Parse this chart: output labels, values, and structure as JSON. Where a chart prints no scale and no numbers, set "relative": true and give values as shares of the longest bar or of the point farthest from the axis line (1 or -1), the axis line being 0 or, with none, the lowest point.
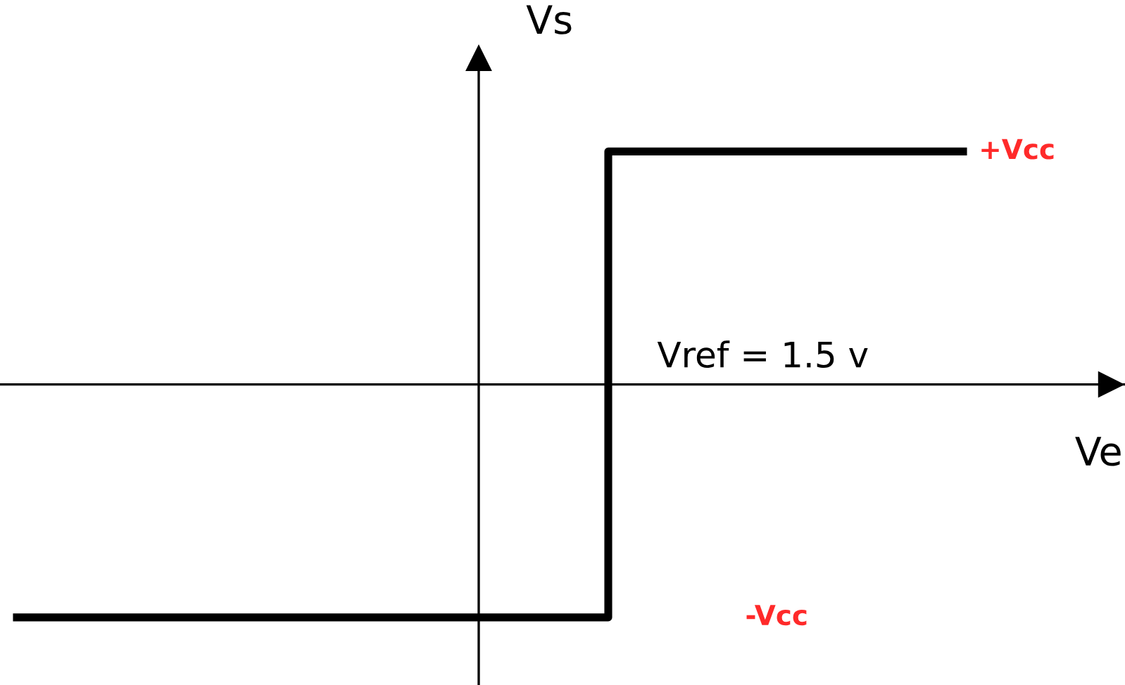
{
  "chart_data": {
    "type": "step",
    "relative": true,
    "xlabel": "Ve",
    "ylabel": "Vs",
    "categories": [
      null,
      null,
      null,
      null,
      null,
      null,
      null,
      null,
      null
    ],
    "values": [
      -1,
      -1,
      -1,
      -1,
      -1,
      1,
      1,
      1,
      1
    ],
    "color": "#000000",
    "annotations": [
      "+Vcc",
      "-Vcc",
      "Vref = 1.5 v"
    ]
  }
}
